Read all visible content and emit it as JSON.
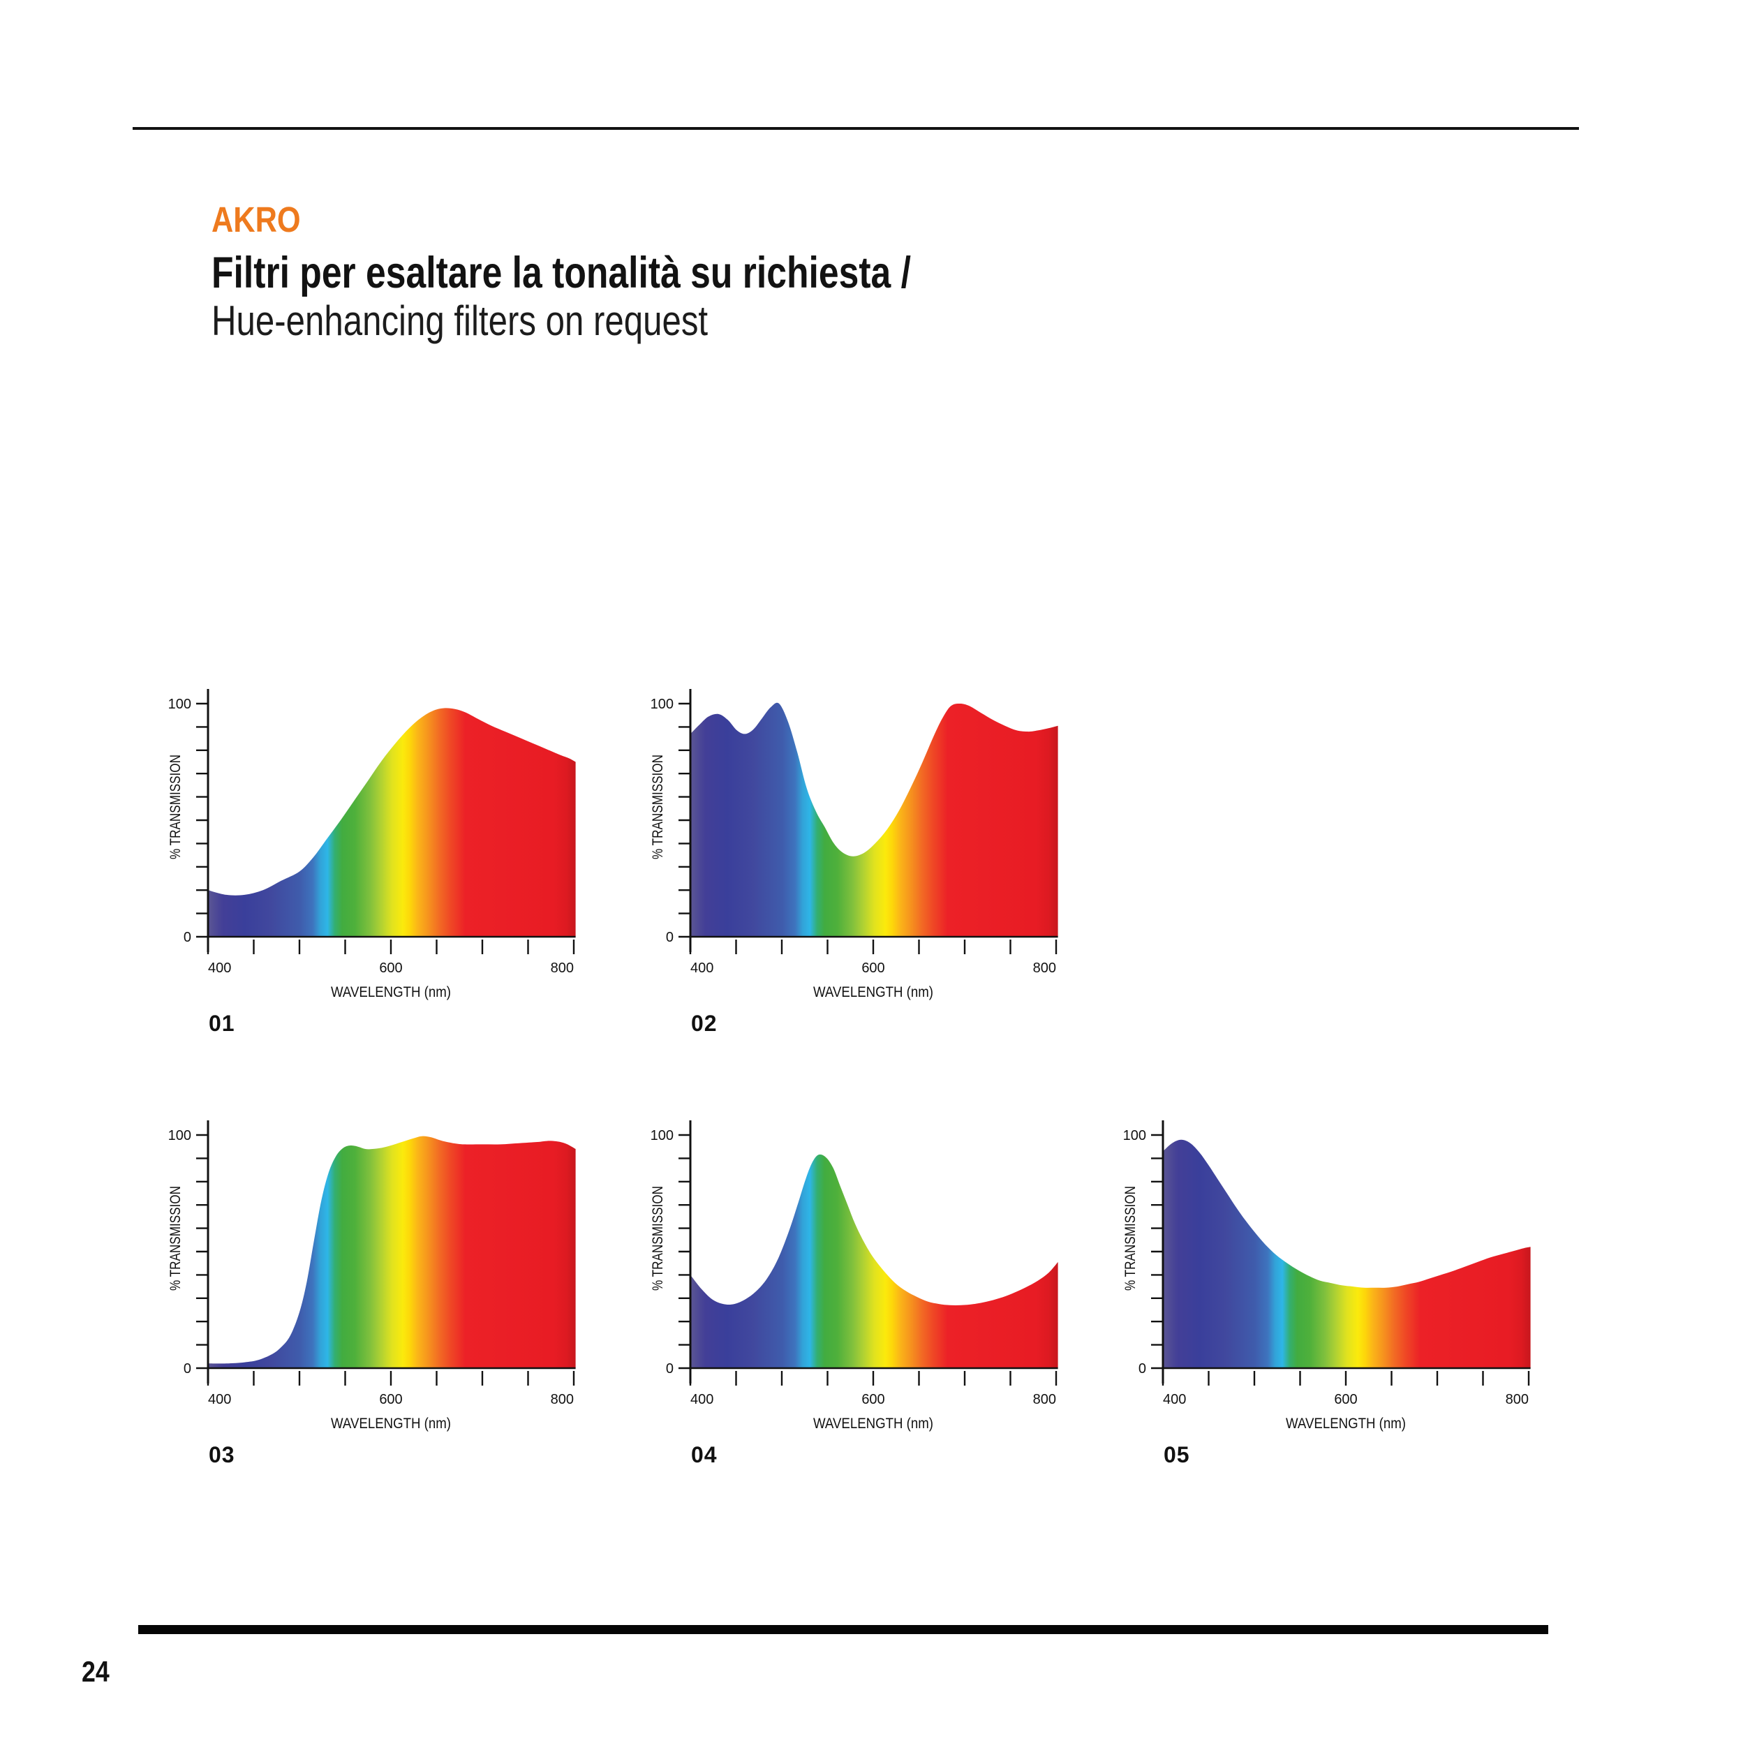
{
  "header": {
    "brand": "AKRO",
    "brand_color": "#EE7A1E",
    "title_line1": "Filtri per esaltare la tonalità su richiesta /",
    "title_line2": "Hue-enhancing filters on request"
  },
  "footer": {
    "page_number": "24"
  },
  "axis": {
    "y_label": "% TRANSMISSION",
    "x_label": "WAVELENGTH (nm)",
    "y_max_label": "100",
    "y_min_label": "0",
    "y_tick_step": 10,
    "x_ticks": [
      400,
      450,
      500,
      550,
      600,
      650,
      700,
      750,
      800
    ],
    "x_tick_labels": [
      "400",
      "600",
      "800"
    ],
    "grid": false,
    "legend": "none"
  },
  "spectrum_gradient": [
    {
      "at": 0,
      "color": "#5B5694"
    },
    {
      "at": 0.04,
      "color": "#433F97"
    },
    {
      "at": 0.1,
      "color": "#3A3F9B"
    },
    {
      "at": 0.17,
      "color": "#41489E"
    },
    {
      "at": 0.25,
      "color": "#3F5CAC"
    },
    {
      "at": 0.285,
      "color": "#3E74BE"
    },
    {
      "at": 0.305,
      "color": "#32A2D8"
    },
    {
      "at": 0.325,
      "color": "#2EB6E7"
    },
    {
      "at": 0.345,
      "color": "#33AF71"
    },
    {
      "at": 0.365,
      "color": "#42AC40"
    },
    {
      "at": 0.4,
      "color": "#4FB03B"
    },
    {
      "at": 0.44,
      "color": "#7FC03D"
    },
    {
      "at": 0.47,
      "color": "#AFD133"
    },
    {
      "at": 0.5,
      "color": "#E0E21F"
    },
    {
      "at": 0.53,
      "color": "#FBEA0C"
    },
    {
      "at": 0.55,
      "color": "#FDD60A"
    },
    {
      "at": 0.57,
      "color": "#FBB618"
    },
    {
      "at": 0.6,
      "color": "#F6921E"
    },
    {
      "at": 0.63,
      "color": "#F26A24"
    },
    {
      "at": 0.66,
      "color": "#EF4825"
    },
    {
      "at": 0.7,
      "color": "#EC2127"
    },
    {
      "at": 0.94,
      "color": "#E81C24"
    },
    {
      "at": 0.975,
      "color": "#DD1A21"
    },
    {
      "at": 1,
      "color": "#C7171D"
    }
  ],
  "chart_data": [
    {
      "id": "01",
      "label": "01",
      "type": "area",
      "xlabel": "WAVELENGTH (nm)",
      "ylabel": "% TRANSMISSION",
      "xlim": [
        400,
        802
      ],
      "ylim": [
        0,
        100
      ],
      "x": [
        400,
        420,
        440,
        460,
        480,
        500,
        515,
        530,
        545,
        560,
        575,
        590,
        605,
        620,
        635,
        650,
        665,
        680,
        695,
        710,
        725,
        740,
        755,
        770,
        785,
        795,
        802
      ],
      "values": [
        20,
        18,
        18,
        20,
        24,
        28,
        34,
        42,
        50,
        58.5,
        67,
        75.5,
        83,
        89.5,
        94.5,
        97.5,
        98,
        96.5,
        93.5,
        90.5,
        88,
        85.5,
        83,
        80.5,
        78,
        76.5,
        75
      ]
    },
    {
      "id": "02",
      "label": "02",
      "type": "area",
      "xlabel": "WAVELENGTH (nm)",
      "ylabel": "% TRANSMISSION",
      "xlim": [
        400,
        802
      ],
      "ylim": [
        0,
        100
      ],
      "x": [
        400,
        410,
        420,
        431,
        441,
        451,
        460,
        469,
        478,
        488,
        497,
        507,
        517,
        527,
        537,
        547,
        557,
        567,
        578,
        590,
        602,
        615,
        628,
        641,
        654,
        666,
        676,
        685,
        695,
        705,
        718,
        731,
        744,
        757,
        770,
        780,
        792,
        802
      ],
      "values": [
        87,
        91,
        94.5,
        95.5,
        93,
        88.5,
        87,
        89,
        93.5,
        98.5,
        100,
        92,
        79,
        64,
        54,
        47,
        40,
        36,
        34.5,
        36,
        40,
        46,
        54,
        64,
        75,
        86,
        94,
        99,
        100,
        99,
        96,
        93,
        90.5,
        88.5,
        88,
        88.5,
        89.5,
        90.5
      ]
    },
    {
      "id": "03",
      "label": "03",
      "type": "area",
      "xlabel": "WAVELENGTH (nm)",
      "ylabel": "% TRANSMISSION",
      "xlim": [
        400,
        802
      ],
      "ylim": [
        0,
        100
      ],
      "x": [
        400,
        420,
        440,
        455,
        470,
        480,
        490,
        500,
        508,
        516,
        524,
        532,
        540,
        548,
        556,
        564,
        572,
        580,
        590,
        600,
        612,
        624,
        634,
        644,
        656,
        668,
        680,
        700,
        720,
        740,
        760,
        775,
        790,
        802
      ],
      "values": [
        2,
        2,
        2.5,
        3.5,
        6,
        9,
        14,
        24,
        37,
        55,
        72,
        84,
        91,
        94.5,
        95.5,
        95,
        94,
        94,
        94.5,
        95.5,
        97,
        98.5,
        99.5,
        99,
        97.5,
        96.5,
        96,
        96,
        96,
        96.5,
        97,
        97.5,
        96.5,
        94
      ]
    },
    {
      "id": "04",
      "label": "04",
      "type": "area",
      "xlabel": "WAVELENGTH (nm)",
      "ylabel": "% TRANSMISSION",
      "xlim": [
        400,
        802
      ],
      "ylim": [
        0,
        100
      ],
      "x": [
        400,
        412,
        424,
        436,
        448,
        460,
        472,
        484,
        496,
        508,
        518,
        526,
        533,
        540,
        548,
        556,
        564,
        572,
        580,
        590,
        600,
        612,
        624,
        636,
        648,
        660,
        672,
        684,
        696,
        710,
        724,
        738,
        752,
        766,
        780,
        792,
        802
      ],
      "values": [
        40,
        34,
        29.5,
        27.5,
        27.5,
        29.5,
        33,
        38.5,
        47,
        59,
        71,
        81,
        88,
        91.5,
        90.5,
        86,
        78,
        70,
        62,
        54,
        47.5,
        41.5,
        36.5,
        33,
        30.5,
        28.5,
        27.5,
        27,
        27,
        27.5,
        28.5,
        30,
        32,
        34.5,
        37.5,
        41,
        45.5
      ]
    },
    {
      "id": "05",
      "label": "05",
      "type": "area",
      "xlabel": "WAVELENGTH (nm)",
      "ylabel": "% TRANSMISSION",
      "xlim": [
        400,
        802
      ],
      "ylim": [
        0,
        100
      ],
      "x": [
        400,
        410,
        420,
        430,
        440,
        450,
        460,
        470,
        480,
        490,
        500,
        512,
        524,
        536,
        548,
        560,
        572,
        584,
        596,
        608,
        620,
        632,
        644,
        656,
        668,
        680,
        692,
        704,
        716,
        730,
        744,
        758,
        772,
        786,
        795,
        802
      ],
      "values": [
        93,
        96.5,
        98,
        96.5,
        92.5,
        87,
        81,
        75,
        69,
        63.5,
        58.5,
        53,
        48.5,
        45,
        42,
        39.5,
        37.5,
        36.5,
        35.5,
        35,
        34.5,
        34.5,
        34.5,
        35,
        36,
        37,
        38.5,
        40,
        41.5,
        43.5,
        45.5,
        47.5,
        49,
        50.5,
        51.5,
        52
      ]
    }
  ]
}
